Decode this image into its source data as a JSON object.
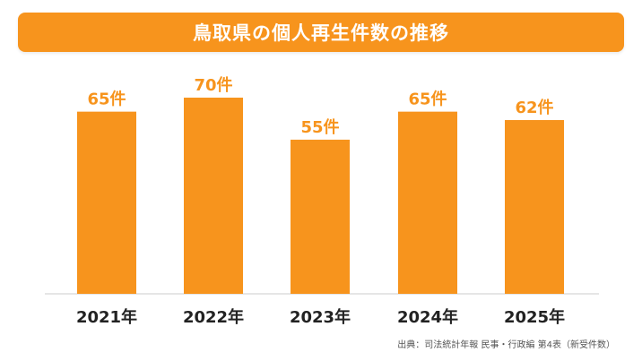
{
  "title": "鳥取県の個人再生件数の推移",
  "colors": {
    "accent": "#f7941d",
    "bar": "#f7941d",
    "label": "#f7941d",
    "axis": "#cccccc",
    "tick": "#222222"
  },
  "chart_data": {
    "type": "bar",
    "title": "鳥取県の個人再生件数の推移",
    "categories": [
      "2021年",
      "2022年",
      "2023年",
      "2024年",
      "2025年"
    ],
    "values": [
      65,
      70,
      55,
      65,
      62
    ],
    "data_labels": [
      "65件",
      "70件",
      "55件",
      "65件",
      "62件"
    ],
    "xlabel": "",
    "ylabel": "",
    "grid": false,
    "legend": "none"
  },
  "source": "出典：司法統計年報 民事・行政編 第4表（新受件数）"
}
